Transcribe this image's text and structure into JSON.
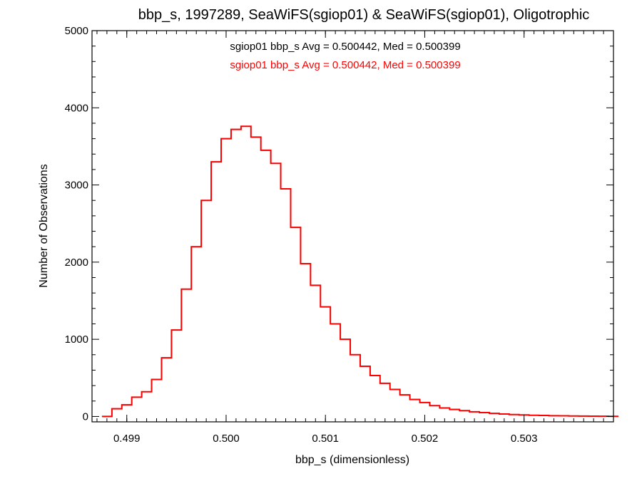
{
  "chart_data": {
    "type": "step-histogram",
    "title": "bbp_s, 1997289, SeaWiFS(sgiop01) & SeaWiFS(sgiop01), Oligotrophic",
    "xlabel": "bbp_s (dimensionless)",
    "ylabel": "Number of Observations",
    "xlim": [
      0.49865,
      0.5039
    ],
    "ylim": [
      -70,
      5000
    ],
    "x_ticks": [
      0.499,
      0.5,
      0.501,
      0.502,
      0.503
    ],
    "x_tick_labels": [
      "0.499",
      "0.500",
      "0.501",
      "0.502",
      "0.503"
    ],
    "y_ticks": [
      0,
      1000,
      2000,
      3000,
      4000,
      5000
    ],
    "y_tick_labels": [
      "0",
      "1000",
      "2000",
      "3000",
      "4000",
      "5000"
    ],
    "grid": false,
    "annotations": [
      {
        "text": "sgiop01 bbp_s Avg = 0.500442, Med = 0.500399",
        "color": "#000000"
      },
      {
        "text": "sgiop01 bbp_s Avg = 0.500442, Med = 0.500399",
        "color": "#ff0000"
      }
    ],
    "series": [
      {
        "color": "#000000",
        "x": [
          0.4988,
          0.4989,
          0.499,
          0.4991,
          0.4992,
          0.4993,
          0.4994,
          0.4995,
          0.4996,
          0.4997,
          0.4998,
          0.4999,
          0.5,
          0.5001,
          0.5002,
          0.5003,
          0.5004,
          0.5005,
          0.5006,
          0.5007,
          0.5008,
          0.5009,
          0.501,
          0.5011,
          0.5012,
          0.5013,
          0.5014,
          0.5015,
          0.5016,
          0.5017,
          0.5018,
          0.5019,
          0.502,
          0.5021,
          0.5022,
          0.5023,
          0.5024,
          0.5025,
          0.5026,
          0.5027,
          0.5028,
          0.5029,
          0.503,
          0.5031,
          0.5032,
          0.5033,
          0.5034,
          0.5035,
          0.5036,
          0.5037,
          0.5038,
          0.5039
        ],
        "values": [
          0,
          100,
          150,
          250,
          320,
          480,
          760,
          1120,
          1650,
          2200,
          2800,
          3300,
          3600,
          3720,
          3760,
          3620,
          3450,
          3280,
          2950,
          2450,
          1980,
          1700,
          1420,
          1200,
          1000,
          800,
          650,
          530,
          430,
          350,
          280,
          220,
          180,
          140,
          110,
          90,
          75,
          60,
          50,
          40,
          32,
          25,
          20,
          16,
          13,
          10,
          8,
          6,
          5,
          4,
          3,
          2
        ]
      },
      {
        "color": "#ff0000",
        "x": [
          0.4988,
          0.4989,
          0.499,
          0.4991,
          0.4992,
          0.4993,
          0.4994,
          0.4995,
          0.4996,
          0.4997,
          0.4998,
          0.4999,
          0.5,
          0.5001,
          0.5002,
          0.5003,
          0.5004,
          0.5005,
          0.5006,
          0.5007,
          0.5008,
          0.5009,
          0.501,
          0.5011,
          0.5012,
          0.5013,
          0.5014,
          0.5015,
          0.5016,
          0.5017,
          0.5018,
          0.5019,
          0.502,
          0.5021,
          0.5022,
          0.5023,
          0.5024,
          0.5025,
          0.5026,
          0.5027,
          0.5028,
          0.5029,
          0.503,
          0.5031,
          0.5032,
          0.5033,
          0.5034,
          0.5035,
          0.5036,
          0.5037,
          0.5038,
          0.5039
        ],
        "values": [
          0,
          100,
          150,
          250,
          320,
          480,
          760,
          1120,
          1650,
          2200,
          2800,
          3300,
          3600,
          3720,
          3760,
          3620,
          3450,
          3280,
          2950,
          2450,
          1980,
          1700,
          1420,
          1200,
          1000,
          800,
          650,
          530,
          430,
          350,
          280,
          220,
          180,
          140,
          110,
          90,
          75,
          60,
          50,
          40,
          32,
          25,
          20,
          16,
          13,
          10,
          8,
          6,
          5,
          4,
          3,
          2
        ]
      }
    ]
  }
}
